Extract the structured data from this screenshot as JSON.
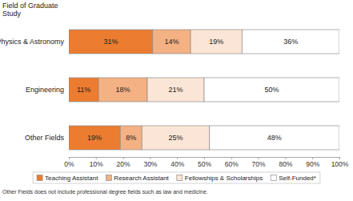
{
  "chart_data": {
    "type": "bar",
    "orientation": "horizontal",
    "stacked": true,
    "data_labels": true,
    "grid": false,
    "legend": "bottom",
    "y_label": "Field of Graduate Study",
    "categories": [
      "Physics & Astronomy",
      "Engineering",
      "Other Fields"
    ],
    "series": [
      {
        "name": "Teaching Assistant",
        "color": "#ec7c30",
        "values": [
          31,
          11,
          19
        ],
        "value_labels": [
          "31%",
          "11%",
          "19%"
        ]
      },
      {
        "name": "Research Assistant",
        "color": "#f4b183",
        "values": [
          14,
          18,
          8
        ],
        "value_labels": [
          "14%",
          "18%",
          "8%"
        ]
      },
      {
        "name": "Fellowships & Scholarships",
        "color": "#fbe5d6",
        "values": [
          19,
          21,
          25
        ],
        "value_labels": [
          "19%",
          "21%",
          "25%"
        ]
      },
      {
        "name": "Self-Funded*",
        "color": "#ffffff",
        "values": [
          36,
          50,
          48
        ],
        "value_labels": [
          "36%",
          "50%",
          "48%"
        ]
      }
    ],
    "xlim": [
      0,
      100
    ],
    "xticks": [
      {
        "value": 0,
        "label": "0%"
      },
      {
        "value": 10,
        "label": "10%"
      },
      {
        "value": 20,
        "label": "20%"
      },
      {
        "value": 30,
        "label": "30%"
      },
      {
        "value": 40,
        "label": "40%"
      },
      {
        "value": 50,
        "label": "50%"
      },
      {
        "value": 60,
        "label": "60%"
      },
      {
        "value": 70,
        "label": "70%"
      },
      {
        "value": 80,
        "label": "80%"
      },
      {
        "value": 90,
        "label": "90%"
      },
      {
        "value": 100,
        "label": "100%"
      }
    ],
    "annotations": [
      "Other Fields does not include professional degree fields such as law and medicine."
    ]
  }
}
